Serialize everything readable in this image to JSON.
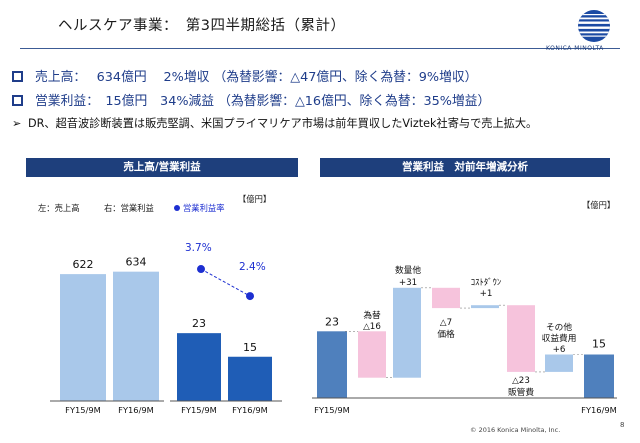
{
  "header": {
    "title": "ヘルスケア事業：　第3四半期総括（累計）",
    "logo_text": "KONICA MINOLTA"
  },
  "summary": {
    "sales": "売上高：　 634億円　 2%増収 （為替影響：△47億円、除く為替：9%増収）",
    "profit": "営業利益：　15億円　34%減益 （為替影響：△16億円、除く為替：35%増益）",
    "note": "DR、超音波診断装置は販売堅調、米国プライマリケア市場は前年買収したViztek社寄与で売上拡大。",
    "note_bullet": "➢"
  },
  "left_panel": {
    "title": "売上高/営業利益",
    "unit": "【億円】",
    "legend_left": "左：売上高",
    "legend_right": "右：営業利益",
    "legend_rate": "営業利益率"
  },
  "right_panel": {
    "title": "営業利益　対前年増減分析",
    "unit": "【億円】"
  },
  "colors": {
    "navy": "#1e3f7c",
    "light_blue": "#a9c8ea",
    "dark_blue": "#1f5db6",
    "steel_blue": "#4f80bd",
    "pink": "#f6c3dc",
    "rate_dot": "#1d2fd1"
  },
  "chart_data": [
    {
      "type": "bar",
      "series": [
        {
          "name": "売上高",
          "categories": [
            "FY15/9M",
            "FY16/9M"
          ],
          "values": [
            622,
            634
          ]
        },
        {
          "name": "営業利益",
          "categories": [
            "FY15/9M",
            "FY16/9M"
          ],
          "values": [
            23,
            15
          ]
        },
        {
          "name": "営業利益率",
          "categories": [
            "FY15/9M",
            "FY16/9M"
          ],
          "values": [
            "3.7%",
            "2.4%"
          ]
        }
      ],
      "value_labels": [
        "622",
        "634",
        "23",
        "15"
      ],
      "rate_labels": [
        "3.7%",
        "2.4%"
      ]
    },
    {
      "type": "bar",
      "subtype": "waterfall",
      "start": {
        "label": "FY15/9M",
        "value": 23,
        "value_label": "23"
      },
      "end": {
        "label": "FY16/9M",
        "value": 15,
        "value_label": "15"
      },
      "steps": [
        {
          "name": "為替",
          "display": "△16",
          "value": -16
        },
        {
          "name": "数量他",
          "display": "+31",
          "value": 31
        },
        {
          "name": "価格",
          "display": "△7",
          "value": -7
        },
        {
          "name": "ｺｽﾄﾀﾞｳﾝ",
          "display": "+1",
          "value": 1
        },
        {
          "name": "販管費",
          "display": "△23",
          "value": -23
        },
        {
          "name": "その他収益費用",
          "display": "+6",
          "value": 6
        }
      ]
    }
  ],
  "footer": {
    "copyright": "© 2016 Konica Minolta, Inc.",
    "page": "8"
  }
}
